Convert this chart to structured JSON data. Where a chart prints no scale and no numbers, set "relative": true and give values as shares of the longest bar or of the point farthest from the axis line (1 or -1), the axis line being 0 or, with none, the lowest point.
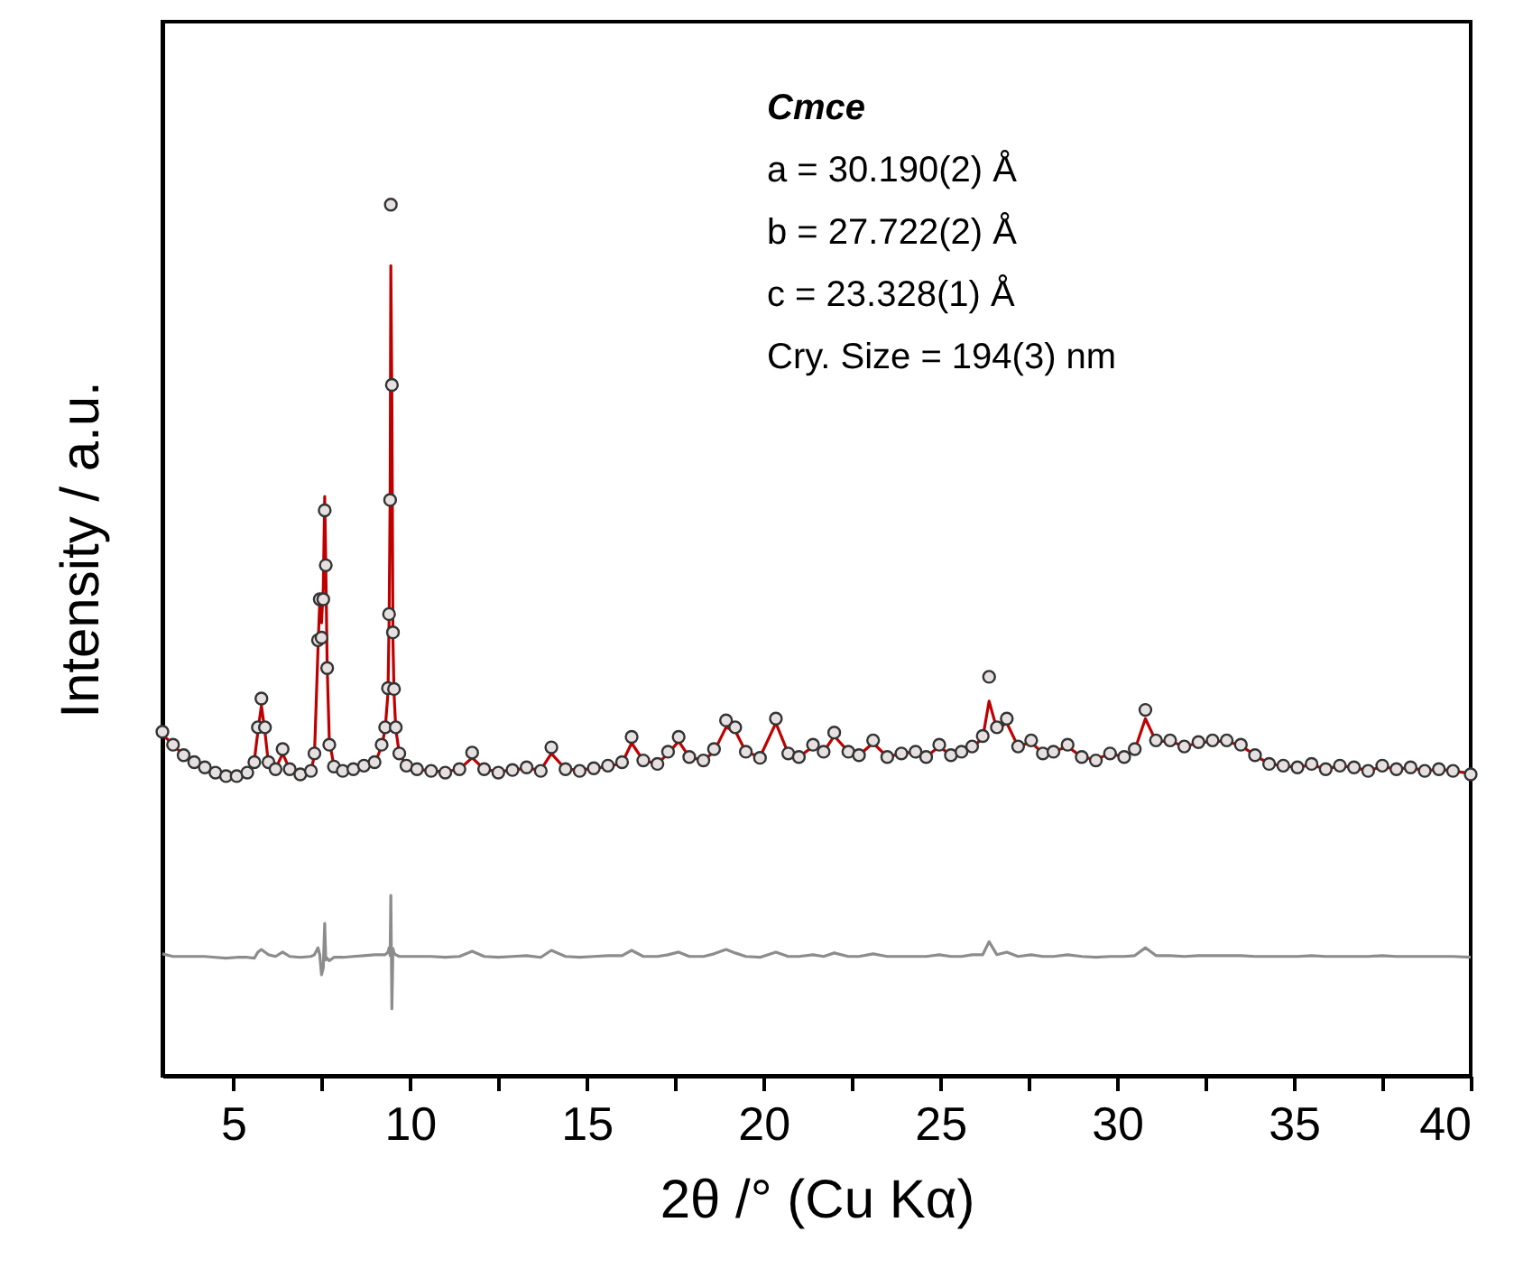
{
  "chart_data": {
    "type": "scatter",
    "relative": true,
    "xlabel": "2θ /° (Cu Kα)",
    "ylabel": "Intensity / a.u.",
    "annotations": [
      "Cmce",
      "a = 30.190(2) Å",
      "b = 27.722(2) Å",
      "c = 23.328(1) Å",
      "Cry. Size = 194(3) nm"
    ],
    "xlim": [
      3,
      40
    ],
    "xticks": [
      5,
      {
        "value": 7.5,
        "label": null
      },
      10,
      {
        "value": 12.5,
        "label": null
      },
      15,
      {
        "value": 17.5,
        "label": null
      },
      20,
      {
        "value": 22.5,
        "label": null
      },
      25,
      {
        "value": 27.5,
        "label": null
      },
      30,
      {
        "value": 32.5,
        "label": null
      },
      35,
      {
        "value": 37.5,
        "label": null
      },
      40
    ],
    "grid": false,
    "x": [
      3.0,
      3.3,
      3.6,
      3.9,
      4.2,
      4.5,
      4.8,
      5.1,
      5.4,
      5.6,
      5.7,
      5.8,
      5.9,
      6.0,
      6.2,
      6.4,
      6.6,
      6.9,
      7.2,
      7.3,
      7.4,
      7.45,
      7.5,
      7.55,
      7.59,
      7.62,
      7.66,
      7.72,
      7.85,
      8.1,
      8.4,
      8.7,
      9.0,
      9.2,
      9.3,
      9.38,
      9.41,
      9.44,
      9.46,
      9.49,
      9.52,
      9.55,
      9.6,
      9.7,
      9.9,
      10.2,
      10.6,
      11.0,
      11.4,
      11.76,
      12.1,
      12.5,
      12.9,
      13.3,
      13.7,
      14.0,
      14.4,
      14.8,
      15.2,
      15.6,
      16.0,
      16.27,
      16.6,
      17.0,
      17.3,
      17.6,
      17.9,
      18.3,
      18.6,
      18.94,
      19.2,
      19.5,
      19.9,
      20.35,
      20.7,
      21.0,
      21.4,
      21.7,
      22.0,
      22.4,
      22.7,
      23.1,
      23.5,
      23.9,
      24.3,
      24.6,
      24.97,
      25.3,
      25.6,
      25.9,
      26.2,
      26.38,
      26.6,
      26.88,
      27.2,
      27.57,
      27.9,
      28.2,
      28.6,
      29.0,
      29.4,
      29.8,
      30.2,
      30.5,
      30.8,
      31.1,
      31.5,
      31.9,
      32.3,
      32.7,
      33.1,
      33.5,
      33.9,
      34.3,
      34.7,
      35.1,
      35.5,
      35.9,
      36.3,
      36.7,
      37.1,
      37.5,
      37.9,
      38.3,
      38.7,
      39.1,
      39.5,
      40.0
    ],
    "series": [
      {
        "type": "line",
        "color": "#c00000",
        "values": [
          0.392,
          0.38,
          0.368,
          0.36,
          0.354,
          0.349,
          0.346,
          0.345,
          0.349,
          0.362,
          0.395,
          0.425,
          0.395,
          0.358,
          0.352,
          0.37,
          0.352,
          0.347,
          0.35,
          0.368,
          0.49,
          0.545,
          0.52,
          0.56,
          0.665,
          0.59,
          0.47,
          0.385,
          0.356,
          0.351,
          0.352,
          0.355,
          0.358,
          0.378,
          0.398,
          0.44,
          0.52,
          0.66,
          0.93,
          0.78,
          0.5,
          0.44,
          0.398,
          0.37,
          0.356,
          0.352,
          0.35,
          0.349,
          0.352,
          0.365,
          0.352,
          0.349,
          0.351,
          0.353,
          0.351,
          0.37,
          0.352,
          0.351,
          0.353,
          0.355,
          0.359,
          0.382,
          0.362,
          0.358,
          0.37,
          0.384,
          0.366,
          0.362,
          0.372,
          0.4,
          0.396,
          0.372,
          0.366,
          0.405,
          0.37,
          0.366,
          0.378,
          0.372,
          0.39,
          0.372,
          0.368,
          0.382,
          0.366,
          0.37,
          0.372,
          0.366,
          0.378,
          0.368,
          0.372,
          0.376,
          0.388,
          0.43,
          0.398,
          0.405,
          0.378,
          0.383,
          0.37,
          0.372,
          0.378,
          0.366,
          0.363,
          0.37,
          0.366,
          0.374,
          0.41,
          0.384,
          0.384,
          0.378,
          0.382,
          0.384,
          0.384,
          0.379,
          0.368,
          0.358,
          0.356,
          0.354,
          0.357,
          0.352,
          0.356,
          0.354,
          0.35,
          0.355,
          0.352,
          0.354,
          0.35,
          0.352,
          0.35,
          0.347
        ]
      },
      {
        "marker": "circle",
        "color": "#333333",
        "values": [
          0.395,
          0.38,
          0.368,
          0.36,
          0.354,
          0.348,
          0.344,
          0.344,
          0.348,
          0.36,
          0.4,
          0.433,
          0.4,
          0.36,
          0.352,
          0.375,
          0.352,
          0.346,
          0.35,
          0.37,
          0.5,
          0.547,
          0.503,
          0.547,
          0.649,
          0.586,
          0.468,
          0.38,
          0.355,
          0.35,
          0.352,
          0.356,
          0.36,
          0.38,
          0.4,
          0.445,
          0.53,
          0.661,
          1.0,
          0.793,
          0.509,
          0.444,
          0.4,
          0.37,
          0.356,
          0.352,
          0.35,
          0.348,
          0.352,
          0.371,
          0.352,
          0.348,
          0.351,
          0.354,
          0.35,
          0.377,
          0.352,
          0.35,
          0.353,
          0.356,
          0.36,
          0.389,
          0.362,
          0.358,
          0.372,
          0.389,
          0.366,
          0.362,
          0.375,
          0.408,
          0.4,
          0.372,
          0.365,
          0.41,
          0.37,
          0.366,
          0.38,
          0.372,
          0.394,
          0.372,
          0.368,
          0.385,
          0.366,
          0.37,
          0.372,
          0.366,
          0.38,
          0.368,
          0.372,
          0.378,
          0.39,
          0.458,
          0.4,
          0.41,
          0.378,
          0.385,
          0.37,
          0.372,
          0.38,
          0.366,
          0.362,
          0.37,
          0.366,
          0.375,
          0.42,
          0.385,
          0.385,
          0.378,
          0.383,
          0.385,
          0.385,
          0.38,
          0.368,
          0.358,
          0.356,
          0.354,
          0.358,
          0.352,
          0.356,
          0.354,
          0.35,
          0.356,
          0.352,
          0.354,
          0.35,
          0.352,
          0.35,
          0.346
        ]
      },
      {
        "type": "line",
        "color": "#8c8c8c",
        "values": [
          0.14,
          0.137,
          0.137,
          0.137,
          0.137,
          0.136,
          0.135,
          0.136,
          0.136,
          0.135,
          0.142,
          0.145,
          0.142,
          0.139,
          0.137,
          0.142,
          0.137,
          0.136,
          0.137,
          0.139,
          0.147,
          0.139,
          0.116,
          0.124,
          0.175,
          0.133,
          0.135,
          0.132,
          0.136,
          0.136,
          0.137,
          0.138,
          0.139,
          0.139,
          0.139,
          0.142,
          0.147,
          0.138,
          0.207,
          0.077,
          0.146,
          0.141,
          0.139,
          0.137,
          0.137,
          0.137,
          0.137,
          0.136,
          0.137,
          0.143,
          0.137,
          0.136,
          0.137,
          0.138,
          0.136,
          0.144,
          0.137,
          0.136,
          0.137,
          0.138,
          0.138,
          0.144,
          0.137,
          0.137,
          0.139,
          0.142,
          0.137,
          0.137,
          0.14,
          0.145,
          0.141,
          0.137,
          0.136,
          0.142,
          0.137,
          0.137,
          0.139,
          0.137,
          0.141,
          0.137,
          0.137,
          0.14,
          0.137,
          0.137,
          0.137,
          0.137,
          0.139,
          0.137,
          0.137,
          0.139,
          0.139,
          0.154,
          0.139,
          0.142,
          0.137,
          0.139,
          0.137,
          0.137,
          0.139,
          0.137,
          0.136,
          0.137,
          0.137,
          0.138,
          0.147,
          0.138,
          0.138,
          0.137,
          0.138,
          0.138,
          0.138,
          0.138,
          0.137,
          0.137,
          0.137,
          0.137,
          0.138,
          0.137,
          0.137,
          0.137,
          0.137,
          0.138,
          0.137,
          0.137,
          0.137,
          0.137,
          0.137,
          0.136
        ]
      }
    ]
  }
}
